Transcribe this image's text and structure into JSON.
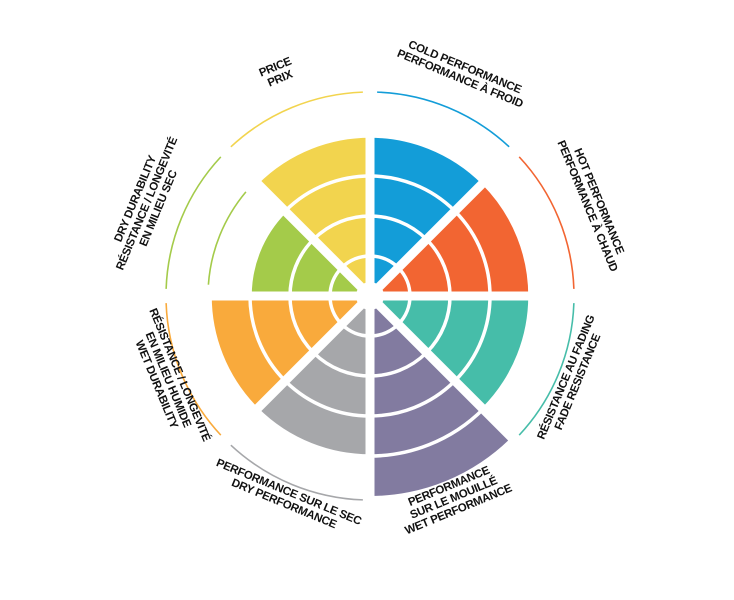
{
  "chart_data": {
    "type": "bar",
    "coordinate_system": "polar",
    "scale_max": 5,
    "grid": true,
    "categories": [
      {
        "label_lines": [
          "COLD PERFORMANCE",
          "PERFORMANCE À FROID"
        ],
        "value": 4,
        "color": "#139DD8",
        "outer_arc": true
      },
      {
        "label_lines": [
          "HOT PERFORMANCE",
          "PERFORMANCE À CHAUD"
        ],
        "value": 4,
        "color": "#F26532",
        "outer_arc": true
      },
      {
        "label_lines": [
          "RÉSISTANCE AU FADING",
          "FADE RESISTANCE"
        ],
        "value": 4,
        "color": "#46BDA9",
        "outer_arc": true
      },
      {
        "label_lines": [
          "PERFORMANCE",
          "SUR LE MOUILLÉ",
          "WET PERFORMANCE"
        ],
        "value": 5,
        "color": "#827BA0",
        "outer_arc": false
      },
      {
        "label_lines": [
          "PERFORMANCE SUR LE SEC",
          "DRY PERFORMANCE"
        ],
        "value": 4,
        "color": "#A6A7AA",
        "outer_arc": true
      },
      {
        "label_lines": [
          "RÉSISTANCE / LONGEVITÉ",
          "EN MILIEU HUMIDE",
          "WET DURABILITY"
        ],
        "value": 4,
        "color": "#F9AA3C",
        "outer_arc": true
      },
      {
        "label_lines": [
          "DRY DURABILITY",
          "RÉSISTANCE / LONGEVITÉ",
          "EN MILIEU SEC"
        ],
        "value": 3,
        "color": "#A4CB4A",
        "outer_arc": true
      },
      {
        "label_lines": [
          "PRICE",
          "PRIX"
        ],
        "value": 4,
        "color": "#F2D44E",
        "outer_arc": true
      }
    ]
  }
}
